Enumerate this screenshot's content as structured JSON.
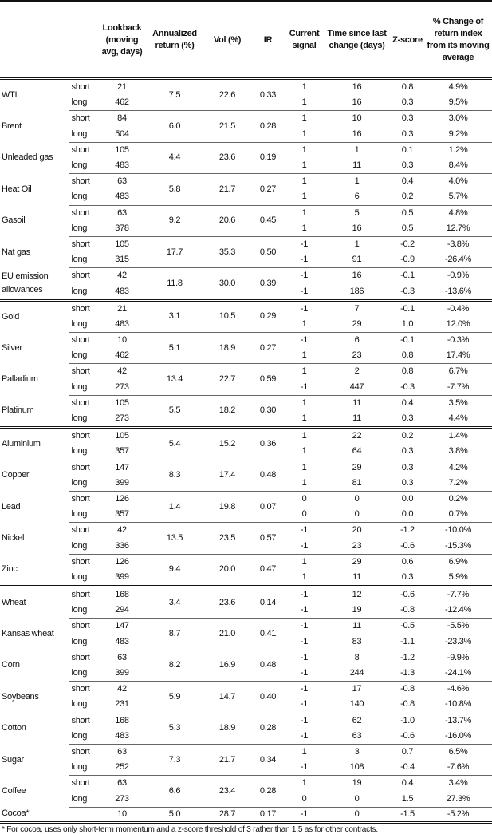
{
  "headers": [
    "",
    "",
    "Lookback (moving avg, days)",
    "Annualized return (%)",
    "Vol (%)",
    "IR",
    "Current signal",
    "Time since last change (days)",
    "Z-score",
    "% Change of return index from its moving average"
  ],
  "groups": [
    [
      {
        "name": "WTI",
        "ann": "7.5",
        "vol": "22.6",
        "ir": "0.33",
        "rows": [
          [
            "short",
            "21",
            "1",
            "16",
            "0.8",
            "4.9%"
          ],
          [
            "long",
            "462",
            "1",
            "16",
            "0.3",
            "9.5%"
          ]
        ]
      },
      {
        "name": "Brent",
        "ann": "6.0",
        "vol": "21.5",
        "ir": "0.28",
        "rows": [
          [
            "short",
            "84",
            "1",
            "10",
            "0.3",
            "3.0%"
          ],
          [
            "long",
            "504",
            "1",
            "16",
            "0.3",
            "9.2%"
          ]
        ]
      },
      {
        "name": "Unleaded gas",
        "ann": "4.4",
        "vol": "23.6",
        "ir": "0.19",
        "rows": [
          [
            "short",
            "105",
            "1",
            "1",
            "0.1",
            "1.2%"
          ],
          [
            "long",
            "483",
            "1",
            "11",
            "0.3",
            "8.4%"
          ]
        ]
      },
      {
        "name": "Heat Oil",
        "ann": "5.8",
        "vol": "21.7",
        "ir": "0.27",
        "rows": [
          [
            "short",
            "63",
            "1",
            "1",
            "0.4",
            "4.0%"
          ],
          [
            "long",
            "483",
            "1",
            "6",
            "0.2",
            "5.7%"
          ]
        ]
      },
      {
        "name": "Gasoil",
        "ann": "9.2",
        "vol": "20.6",
        "ir": "0.45",
        "rows": [
          [
            "short",
            "63",
            "1",
            "5",
            "0.5",
            "4.8%"
          ],
          [
            "long",
            "378",
            "1",
            "16",
            "0.5",
            "12.7%"
          ]
        ]
      },
      {
        "name": "Nat gas",
        "ann": "17.7",
        "vol": "35.3",
        "ir": "0.50",
        "rows": [
          [
            "short",
            "105",
            "-1",
            "1",
            "-0.2",
            "-3.8%"
          ],
          [
            "long",
            "315",
            "-1",
            "91",
            "-0.9",
            "-26.4%"
          ]
        ]
      },
      {
        "name": "EU emission allowances",
        "ann": "11.8",
        "vol": "30.0",
        "ir": "0.39",
        "rows": [
          [
            "short",
            "42",
            "-1",
            "16",
            "-0.1",
            "-0.9%"
          ],
          [
            "long",
            "483",
            "-1",
            "186",
            "-0.3",
            "-13.6%"
          ]
        ]
      }
    ],
    [
      {
        "name": "Gold",
        "ann": "3.1",
        "vol": "10.5",
        "ir": "0.29",
        "rows": [
          [
            "short",
            "21",
            "-1",
            "7",
            "-0.1",
            "-0.4%"
          ],
          [
            "long",
            "483",
            "1",
            "29",
            "1.0",
            "12.0%"
          ]
        ]
      },
      {
        "name": "Silver",
        "ann": "5.1",
        "vol": "18.9",
        "ir": "0.27",
        "rows": [
          [
            "short",
            "10",
            "-1",
            "6",
            "-0.1",
            "-0.3%"
          ],
          [
            "long",
            "462",
            "1",
            "23",
            "0.8",
            "17.4%"
          ]
        ]
      },
      {
        "name": "Palladium",
        "ann": "13.4",
        "vol": "22.7",
        "ir": "0.59",
        "rows": [
          [
            "short",
            "42",
            "1",
            "2",
            "0.8",
            "6.7%"
          ],
          [
            "long",
            "273",
            "-1",
            "447",
            "-0.3",
            "-7.7%"
          ]
        ]
      },
      {
        "name": "Platinum",
        "ann": "5.5",
        "vol": "18.2",
        "ir": "0.30",
        "rows": [
          [
            "short",
            "105",
            "1",
            "11",
            "0.4",
            "3.5%"
          ],
          [
            "long",
            "273",
            "1",
            "11",
            "0.3",
            "4.4%"
          ]
        ]
      }
    ],
    [
      {
        "name": "Aluminium",
        "ann": "5.4",
        "vol": "15.2",
        "ir": "0.36",
        "rows": [
          [
            "short",
            "105",
            "1",
            "22",
            "0.2",
            "1.4%"
          ],
          [
            "long",
            "357",
            "1",
            "64",
            "0.3",
            "3.8%"
          ]
        ]
      },
      {
        "name": "Copper",
        "ann": "8.3",
        "vol": "17.4",
        "ir": "0.48",
        "rows": [
          [
            "short",
            "147",
            "1",
            "29",
            "0.3",
            "4.2%"
          ],
          [
            "long",
            "399",
            "1",
            "81",
            "0.3",
            "7.2%"
          ]
        ]
      },
      {
        "name": "Lead",
        "ann": "1.4",
        "vol": "19.8",
        "ir": "0.07",
        "rows": [
          [
            "short",
            "126",
            "0",
            "0",
            "0.0",
            "0.2%"
          ],
          [
            "long",
            "357",
            "0",
            "0",
            "0.0",
            "0.7%"
          ]
        ]
      },
      {
        "name": "Nickel",
        "ann": "13.5",
        "vol": "23.5",
        "ir": "0.57",
        "rows": [
          [
            "short",
            "42",
            "-1",
            "20",
            "-1.2",
            "-10.0%"
          ],
          [
            "long",
            "336",
            "-1",
            "23",
            "-0.6",
            "-15.3%"
          ]
        ]
      },
      {
        "name": "Zinc",
        "ann": "9.4",
        "vol": "20.0",
        "ir": "0.47",
        "rows": [
          [
            "short",
            "126",
            "1",
            "29",
            "0.6",
            "6.9%"
          ],
          [
            "long",
            "399",
            "1",
            "11",
            "0.3",
            "5.9%"
          ]
        ]
      }
    ],
    [
      {
        "name": "Wheat",
        "ann": "3.4",
        "vol": "23.6",
        "ir": "0.14",
        "rows": [
          [
            "short",
            "168",
            "-1",
            "12",
            "-0.6",
            "-7.7%"
          ],
          [
            "long",
            "294",
            "-1",
            "19",
            "-0.8",
            "-12.4%"
          ]
        ]
      },
      {
        "name": "Kansas wheat",
        "ann": "8.7",
        "vol": "21.0",
        "ir": "0.41",
        "rows": [
          [
            "short",
            "147",
            "-1",
            "11",
            "-0.5",
            "-5.5%"
          ],
          [
            "long",
            "483",
            "-1",
            "83",
            "-1.1",
            "-23.3%"
          ]
        ]
      },
      {
        "name": "Corn",
        "ann": "8.2",
        "vol": "16.9",
        "ir": "0.48",
        "rows": [
          [
            "short",
            "63",
            "-1",
            "8",
            "-1.2",
            "-9.9%"
          ],
          [
            "long",
            "399",
            "-1",
            "244",
            "-1.3",
            "-24.1%"
          ]
        ]
      },
      {
        "name": "Soybeans",
        "ann": "5.9",
        "vol": "14.7",
        "ir": "0.40",
        "rows": [
          [
            "short",
            "42",
            "-1",
            "17",
            "-0.8",
            "-4.6%"
          ],
          [
            "long",
            "231",
            "-1",
            "140",
            "-0.8",
            "-10.8%"
          ]
        ]
      },
      {
        "name": "Cotton",
        "ann": "5.3",
        "vol": "18.9",
        "ir": "0.28",
        "rows": [
          [
            "short",
            "168",
            "-1",
            "62",
            "-1.0",
            "-13.7%"
          ],
          [
            "long",
            "483",
            "-1",
            "63",
            "-0.6",
            "-16.0%"
          ]
        ]
      },
      {
        "name": "Sugar",
        "ann": "7.3",
        "vol": "21.7",
        "ir": "0.34",
        "rows": [
          [
            "short",
            "63",
            "1",
            "3",
            "0.7",
            "6.5%"
          ],
          [
            "long",
            "252",
            "-1",
            "108",
            "-0.4",
            "-7.6%"
          ]
        ]
      },
      {
        "name": "Coffee",
        "ann": "6.6",
        "vol": "23.4",
        "ir": "0.28",
        "rows": [
          [
            "short",
            "63",
            "1",
            "19",
            "0.4",
            "3.4%"
          ],
          [
            "long",
            "273",
            "0",
            "0",
            "1.5",
            "27.3%"
          ]
        ]
      },
      {
        "name": "Cocoa*",
        "ann": "5.0",
        "vol": "28.7",
        "ir": "0.17",
        "single": [
          "",
          "10",
          "-1",
          "0",
          "-1.5",
          "-5.2%"
        ]
      }
    ]
  ],
  "footnote": "* For cocoa, uses only short-term momentum and a z-score threshold of 3 rather than 1.5 as for other contracts."
}
